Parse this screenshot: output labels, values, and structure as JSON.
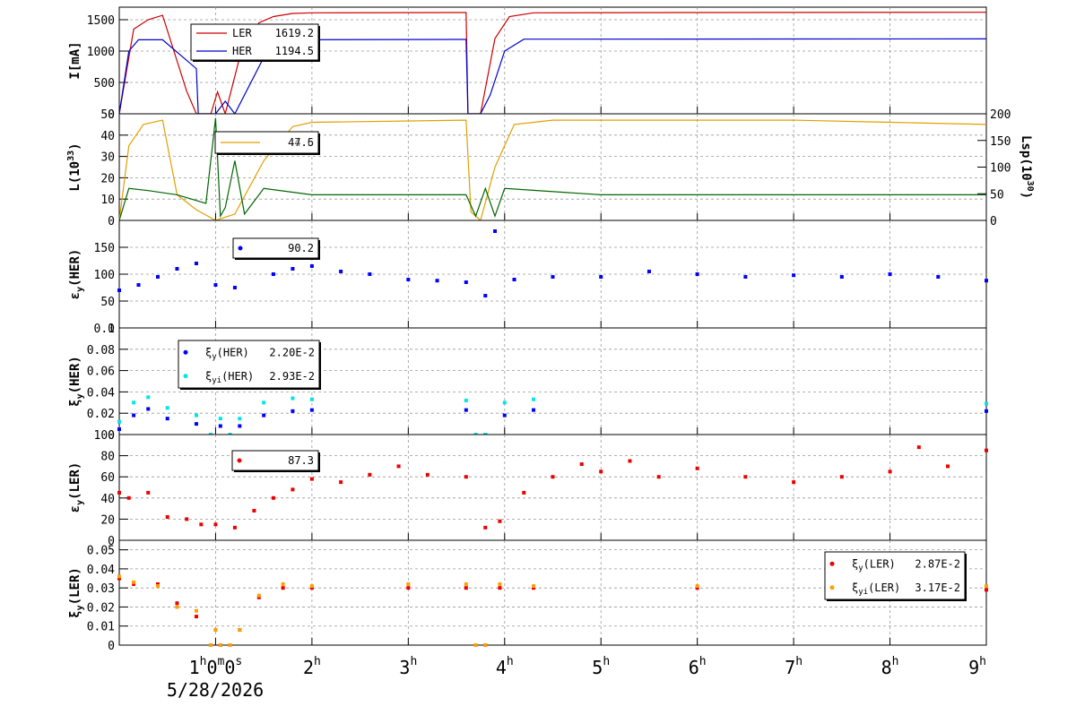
{
  "chart_data": [
    {
      "type": "line",
      "ylabel": "I[mA]",
      "ylim": [
        0,
        1700
      ],
      "yticks": [
        "1500",
        "1000",
        "500",
        "0"
      ],
      "grid": true,
      "legend_placement": "top-left",
      "series": [
        {
          "name": "LER",
          "legend_value": "1619.2",
          "color": "#cc0000",
          "x": [
            0,
            0.15,
            0.3,
            0.45,
            0.7,
            0.8,
            0.95,
            1.02,
            1.1,
            1.25,
            1.45,
            1.6,
            1.8,
            2.0,
            3.6,
            3.62,
            3.75,
            3.9,
            4.05,
            4.3,
            6.0,
            9.0
          ],
          "y": [
            0,
            1350,
            1500,
            1570,
            360,
            0,
            0,
            350,
            0,
            900,
            1450,
            1550,
            1600,
            1610,
            1615,
            0,
            0,
            1200,
            1550,
            1610,
            1615,
            1619
          ]
        },
        {
          "name": "HER",
          "legend_value": "1194.5",
          "color": "#0000cc",
          "x": [
            0,
            0.1,
            0.2,
            0.45,
            0.8,
            0.82,
            1.0,
            1.1,
            1.2,
            1.5,
            1.65,
            3.6,
            3.62,
            3.75,
            3.85,
            4.0,
            4.2,
            9.0
          ],
          "y": [
            0,
            1000,
            1180,
            1180,
            720,
            0,
            0,
            200,
            0,
            900,
            1180,
            1185,
            0,
            0,
            300,
            1000,
            1190,
            1195
          ]
        }
      ]
    },
    {
      "type": "line",
      "ylabel": "L(10^33)",
      "ylabel_base": "L(10",
      "ylabel_exp": "33",
      "ylabel_close": ")",
      "ylim": [
        0,
        50
      ],
      "yticks": [
        "50",
        "40",
        "30",
        "20",
        "10",
        "0"
      ],
      "y2label": "Lsp(10^30)",
      "y2label_base": "Lsp(10",
      "y2label_exp": "30",
      "y2label_close": ")",
      "y2lim": [
        0,
        200
      ],
      "y2ticks": [
        "200",
        "150",
        "100",
        "50",
        "0"
      ],
      "grid": true,
      "legend_placement": "top-left",
      "legend_value": "44.5",
      "legend_value_overlay": "47.6",
      "series": [
        {
          "name": "",
          "color": "#e0a000",
          "x": [
            0,
            0.1,
            0.25,
            0.45,
            0.6,
            0.8,
            1.0,
            1.2,
            1.5,
            1.8,
            2.0,
            3.6,
            3.65,
            3.75,
            3.9,
            4.1,
            4.5,
            5.0,
            6.0,
            7.0,
            8.0,
            9.0
          ],
          "y": [
            0,
            35,
            45,
            47,
            12,
            5,
            0,
            3,
            28,
            44,
            46,
            47,
            4,
            0,
            25,
            45,
            47,
            47,
            47,
            47,
            46,
            45
          ]
        },
        {
          "name": "",
          "color": "#006600",
          "x": [
            0,
            0.1,
            0.3,
            0.6,
            0.9,
            1.0,
            1.05,
            1.1,
            1.2,
            1.3,
            1.5,
            2.0,
            3.6,
            3.7,
            3.8,
            3.9,
            4.0,
            5.0,
            7.0,
            9.0
          ],
          "y": [
            0,
            15,
            14,
            12,
            8,
            48,
            2,
            6,
            28,
            3,
            15,
            12,
            12,
            2,
            15,
            2,
            15,
            12,
            12,
            12
          ]
        }
      ]
    },
    {
      "type": "scatter",
      "ylabel": "εy(HER)",
      "ylabel_base": "ε",
      "ylabel_sub": "y",
      "ylabel_rest": "(HER)",
      "ylim": [
        0,
        200
      ],
      "yticks": [
        "150",
        "100",
        "50",
        "0"
      ],
      "grid": true,
      "legend_placement": "top-left",
      "series": [
        {
          "name": "",
          "legend_value": "90.2",
          "color": "#0000ff",
          "x": [
            0,
            0.2,
            0.4,
            0.6,
            0.8,
            1.0,
            1.2,
            1.4,
            1.6,
            1.8,
            2.0,
            2.3,
            2.6,
            3.0,
            3.3,
            3.6,
            3.8,
            3.9,
            4.1,
            4.5,
            5.0,
            5.5,
            6.0,
            6.5,
            7.0,
            7.5,
            8.0,
            8.5,
            9.0
          ],
          "y": [
            70,
            80,
            95,
            110,
            120,
            80,
            75,
            130,
            100,
            110,
            115,
            105,
            100,
            90,
            88,
            85,
            60,
            180,
            90,
            95,
            95,
            105,
            100,
            95,
            98,
            95,
            100,
            95,
            88
          ]
        }
      ]
    },
    {
      "type": "scatter",
      "ylabel": "ξy(HER)",
      "ylabel_base": "ξ",
      "ylabel_sub": "y",
      "ylabel_rest": "(HER)",
      "ylim": [
        0,
        0.1
      ],
      "yticks": [
        "0.1",
        "0.08",
        "0.06",
        "0.04",
        "0.02",
        "0"
      ],
      "grid": true,
      "legend_placement": "top-left",
      "series": [
        {
          "name_base": "ξ",
          "name_sub": "y",
          "name_rest": "(HER)",
          "legend_value": "2.20E-2",
          "color": "#0000ff",
          "x": [
            0,
            0.15,
            0.3,
            0.5,
            0.8,
            0.95,
            1.05,
            1.15,
            1.25,
            1.5,
            1.8,
            2.0,
            3.6,
            3.7,
            3.8,
            4.0,
            4.3,
            9.0
          ],
          "y": [
            0.005,
            0.018,
            0.024,
            0.015,
            0.01,
            0,
            0.008,
            0,
            0.008,
            0.018,
            0.022,
            0.023,
            0.023,
            0,
            0,
            0.018,
            0.023,
            0.022
          ]
        },
        {
          "name_base": "ξ",
          "name_sub": "yi",
          "name_rest": "(HER)",
          "legend_value": "2.93E-2",
          "color": "#00e5e5",
          "x": [
            0,
            0.15,
            0.3,
            0.5,
            0.8,
            0.95,
            1.05,
            1.15,
            1.25,
            1.5,
            1.8,
            2.0,
            3.6,
            3.7,
            3.8,
            4.0,
            4.3,
            9.0
          ],
          "y": [
            0.012,
            0.03,
            0.035,
            0.025,
            0.018,
            0,
            0.015,
            0,
            0.015,
            0.03,
            0.034,
            0.033,
            0.032,
            0,
            0,
            0.03,
            0.033,
            0.029
          ]
        }
      ]
    },
    {
      "type": "scatter",
      "ylabel": "εy(LER)",
      "ylabel_base": "ε",
      "ylabel_sub": "y",
      "ylabel_rest": "(LER)",
      "ylim": [
        0,
        100
      ],
      "yticks": [
        "100",
        "80",
        "60",
        "40",
        "20",
        "0"
      ],
      "grid": true,
      "legend_placement": "top-left",
      "series": [
        {
          "name": "",
          "legend_value": "87.3",
          "color": "#ee0000",
          "x": [
            0,
            0.1,
            0.3,
            0.5,
            0.7,
            0.85,
            1.0,
            1.2,
            1.4,
            1.6,
            1.8,
            2.0,
            2.3,
            2.6,
            2.9,
            3.2,
            3.6,
            3.8,
            3.95,
            4.2,
            4.5,
            4.8,
            5.0,
            5.3,
            5.6,
            6.0,
            6.5,
            7.0,
            7.5,
            8.0,
            8.3,
            8.6,
            9.0
          ],
          "y": [
            45,
            40,
            45,
            22,
            20,
            15,
            15,
            12,
            28,
            40,
            48,
            58,
            55,
            62,
            70,
            62,
            60,
            12,
            18,
            45,
            60,
            72,
            65,
            75,
            60,
            68,
            60,
            55,
            60,
            65,
            88,
            70,
            85
          ]
        }
      ]
    },
    {
      "type": "scatter",
      "ylabel": "ξy(LER)",
      "ylabel_base": "ξ",
      "ylabel_sub": "y",
      "ylabel_rest": "(LER)",
      "ylim": [
        0,
        0.055
      ],
      "yticks": [
        "0.05",
        "0.04",
        "0.03",
        "0.02",
        "0.01",
        "0"
      ],
      "grid": true,
      "legend_placement": "top-right",
      "series": [
        {
          "name_base": "ξ",
          "name_sub": "y",
          "name_rest": "(LER)",
          "legend_value": "2.87E-2",
          "color": "#ee0000",
          "x": [
            0,
            0.15,
            0.4,
            0.6,
            0.8,
            0.95,
            1.0,
            1.05,
            1.15,
            1.25,
            1.45,
            1.7,
            2.0,
            3.0,
            3.6,
            3.7,
            3.8,
            3.95,
            4.3,
            6.0,
            9.0
          ],
          "y": [
            0.035,
            0.032,
            0.032,
            0.022,
            0.015,
            0,
            0.008,
            0,
            0,
            0.008,
            0.025,
            0.03,
            0.03,
            0.03,
            0.03,
            0,
            0,
            0.03,
            0.03,
            0.03,
            0.029
          ]
        },
        {
          "name_base": "ξ",
          "name_sub": "yi",
          "name_rest": "(LER)",
          "legend_value": "3.17E-2",
          "color": "#ff9f00",
          "x": [
            0,
            0.15,
            0.4,
            0.6,
            0.8,
            0.95,
            1.0,
            1.05,
            1.15,
            1.25,
            1.45,
            1.7,
            2.0,
            3.0,
            3.6,
            3.7,
            3.8,
            3.95,
            4.3,
            6.0,
            9.0
          ],
          "y": [
            0.036,
            0.033,
            0.031,
            0.02,
            0.018,
            0,
            0.008,
            0,
            0,
            0.008,
            0.026,
            0.032,
            0.031,
            0.032,
            0.032,
            0,
            0,
            0.032,
            0.031,
            0.031,
            0.031
          ]
        }
      ]
    }
  ],
  "time_axis": {
    "labels": [
      {
        "t": 1,
        "num": "1",
        "unit": "h",
        "extra": "0",
        "extra_unit": "m",
        "extra2": "0",
        "extra2_unit": "s"
      },
      {
        "t": 2,
        "num": "2",
        "unit": "h"
      },
      {
        "t": 3,
        "num": "3",
        "unit": "h"
      },
      {
        "t": 4,
        "num": "4",
        "unit": "h"
      },
      {
        "t": 5,
        "num": "5",
        "unit": "h"
      },
      {
        "t": 6,
        "num": "6",
        "unit": "h"
      },
      {
        "t": 7,
        "num": "7",
        "unit": "h"
      },
      {
        "t": 8,
        "num": "8",
        "unit": "h"
      },
      {
        "t": 9,
        "num": "9",
        "unit": "h"
      }
    ],
    "date": "5/28/2026",
    "range_hours": [
      0,
      9
    ]
  }
}
